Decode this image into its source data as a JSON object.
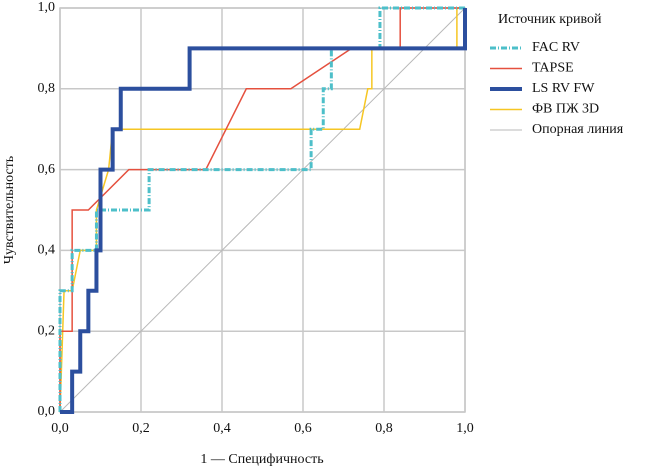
{
  "chart_data": {
    "type": "line",
    "xlabel": "1 — Специфичность",
    "ylabel": "Чувствительность",
    "legend_title": "Источник кривой",
    "legend": "right",
    "grid": true,
    "xlim": [
      0,
      1
    ],
    "ylim": [
      0,
      1
    ],
    "xticks": [
      {
        "value": 0,
        "label": "0,0"
      },
      {
        "value": 0.2,
        "label": "0,2"
      },
      {
        "value": 0.4,
        "label": "0,4"
      },
      {
        "value": 0.6,
        "label": "0,6"
      },
      {
        "value": 0.8,
        "label": "0,8"
      },
      {
        "value": 1,
        "label": "1,0"
      }
    ],
    "yticks": [
      {
        "value": 0,
        "label": "0,0"
      },
      {
        "value": 0.2,
        "label": "0,2"
      },
      {
        "value": 0.4,
        "label": "0,4"
      },
      {
        "value": 0.6,
        "label": "0,6"
      },
      {
        "value": 0.8,
        "label": "0,8"
      },
      {
        "value": 1,
        "label": "1,0"
      }
    ],
    "series": [
      {
        "name": "FAC RV",
        "color": "#4dbfc9",
        "x": [
          0,
          0,
          0.03,
          0.03,
          0.09,
          0.09,
          0.22,
          0.22,
          0.62,
          0.62,
          0.65,
          0.65,
          0.67,
          0.67,
          0.79,
          0.79,
          1
        ],
        "values": [
          0,
          0.3,
          0.3,
          0.4,
          0.4,
          0.5,
          0.5,
          0.6,
          0.6,
          0.7,
          0.7,
          0.8,
          0.8,
          0.9,
          0.9,
          1,
          1
        ]
      },
      {
        "name": "TAPSE",
        "color": "#e5503e",
        "x": [
          0,
          0,
          0.03,
          0.03,
          0.07,
          0.17,
          0.36,
          0.46,
          0.57,
          0.72,
          0.84,
          0.84,
          1
        ],
        "values": [
          0,
          0.2,
          0.2,
          0.5,
          0.5,
          0.6,
          0.6,
          0.8,
          0.8,
          0.9,
          0.9,
          1,
          1
        ]
      },
      {
        "name": "LS RV FW",
        "color": "#2c4f9e",
        "x": [
          0,
          0.03,
          0.03,
          0.05,
          0.05,
          0.07,
          0.07,
          0.09,
          0.09,
          0.1,
          0.1,
          0.13,
          0.13,
          0.15,
          0.15,
          0.32,
          0.32,
          1,
          1
        ],
        "values": [
          0,
          0,
          0.1,
          0.1,
          0.2,
          0.2,
          0.3,
          0.3,
          0.4,
          0.4,
          0.6,
          0.6,
          0.7,
          0.7,
          0.8,
          0.8,
          0.9,
          0.9,
          1
        ]
      },
      {
        "name": "ФВ ПЖ 3D",
        "color": "#f6c623",
        "x": [
          0,
          0.01,
          0.03,
          0.05,
          0.09,
          0.09,
          0.12,
          0.13,
          0.74,
          0.76,
          0.77,
          0.77,
          0.98,
          0.98,
          1
        ],
        "values": [
          0,
          0.3,
          0.3,
          0.4,
          0.4,
          0.5,
          0.6,
          0.7,
          0.7,
          0.8,
          0.8,
          0.9,
          0.9,
          1,
          1
        ]
      },
      {
        "name": "Опорная линия",
        "color": "#b8b8b8",
        "x": [
          0,
          1
        ],
        "values": [
          0,
          1
        ]
      }
    ]
  }
}
